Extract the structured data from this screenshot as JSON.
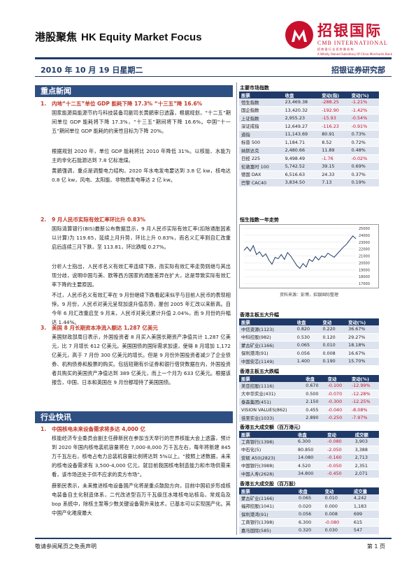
{
  "header": {
    "title_cn": "港股聚焦",
    "title_en": "HK Equity Market Focus",
    "logo_cn": "招银国际",
    "logo_en": "CMB INTERNATIONAL",
    "logo_sub": "招 商 银 行 全 资 附 属 机 构",
    "logo_sub_en": "A Wholly Owned Subsidiary Of China Merchants Bank",
    "date": "2010 年 10 月 19 日星期二",
    "dept": "招银证券研究部",
    "brand_color": "#c8102e",
    "accent_color": "#1f3a68"
  },
  "news": {
    "section_title": "重点新闻",
    "items": [
      {
        "num": "1.",
        "headline": "内地“十二五”单位 GDP 能耗下降 17.3% “十三五”降 16.6%",
        "paragraphs": [
          "国家能源局能源节约与科技装备司副司长黄鹂审日透露，根据规划，“十二五”期间单位 GDP 能耗将下降 17.3%，“十三五”期间将下降 16.6%。中国“十一五”期间单位 GDP 能耗的约束性目标为下降 20%。",
          "根据规划 2020 年，单位 GDP 能耗将比 2010 年降低 31%。以核能、水能为主的非化石能源达到 7.8 亿标准煤。",
          "黄鹂强调，重点是调整电力结构，2020 年水电发电要达到 3.8 亿 kw，核电达 0.8 亿 kw，风电、太阳能、非物质发电等达 2 亿 kw。"
        ]
      },
      {
        "num": "2.",
        "headline": "9 月人民币实际有效汇率环比升 0.83%",
        "paragraphs": [
          "国际清算银行(BIS)最新公布数据显示，9 月人民币实际有效汇率(扣除通胀因素以计算)为 119.65，延续上月升势，环比上升 0.83%，而名义汇率则自汇改重启后连续三月下跌，至 113.81，环比跌幅 0.27%。",
          "分析人士指出，人民币名义有效汇率连续下跌，而实际有效汇率走势则继与其出现分歧，说明中国与美、欧等西方国家的通胀差异在扩大，这是导致实际有效汇率下降的主要原因。",
          "不过，人民币名义有效汇率在 9 月份继续下跌看起来似乎与目前人民币的表现相悖。9 月份，人民币对美元呈现加速升值态势，屡创 2005 年汇改以来新高。自今年 6 月汇改重启至 9 月末，人民币对美元累计升值 2.04%，而 9 月份的升幅达 1.44%。"
        ]
      },
      {
        "num": "3.",
        "headline": "美国 8 月长期资本净流入额达 1,287 亿美元",
        "paragraphs": [
          "美国财政部周日表示，外国投资者 8 月买入美国长期资产净值共计 1,287 亿美元，比 7 月增长 612 亿美元。美国国债的国际需求加速，使得 8 月增加 1,172 亿美元，高于 7 月份 300 亿美元的增长。但是 9 月份外国投资者减少了企业债券、机构债券和股票的购买。包括短期有价证券和银行借贷数据在内，外国投资者共购买的美国资产净值达到 389 亿美元，而上一个月为 633 亿美元。根据该报告，中国、日本和英国在 9 月份都增持了美国国债。"
        ]
      }
    ]
  },
  "industry": {
    "section_title": "行业快讯",
    "items": [
      {
        "num": "1.",
        "headline": "中国核电未来设备需求将多达 4,000 亿",
        "paragraphs": [
          "核能经济专业委员会副主任薛新民在参加当天举行的世界核能大会上透露，预计到 2020 年国内核电装机容量将在 7,000-8,000 万千瓦左右，每年将新建 845 万千瓦左右，核电占电力总装机容量比例将达到 5%以上。“按照上述数据，未来的核电设备需求有 3,500-4,000 亿元，就目前我国核电制造能力和市场供需来看，该市场还处于供不应求的卖方市场”。",
          "薛新民表示，未来推进核电设备国产化将是重点鼓励方向，目前中国初步形成核电装备自主化制造体系，二代改进型百万千瓦级压水堆核电站核岛，常规岛及 bop 系统中，除核主泵等少数关键设备需外来技术，已基本可以实现国产化。其中国产化难度最大"
        ]
      }
    ]
  },
  "indices": {
    "title": "主要市场指数",
    "headers": [
      "股票",
      "收盘",
      "变动(指)",
      "变动(%)"
    ],
    "rows": [
      [
        "恒生指数",
        "23,469.38",
        "-288.25",
        "-1.21%"
      ],
      [
        "国企指数",
        "13,420.32",
        "-192.90",
        "-1.42%"
      ],
      [
        "上证指数",
        "2,955.23",
        "-15.93",
        "-0.54%"
      ],
      [
        "深证成指",
        "12,649.27",
        "-116.23",
        "-0.91%"
      ],
      [
        "道指",
        "11,143.69",
        "80.91",
        "0.73%"
      ],
      [
        "标普 500",
        "1,184.71",
        "8.52",
        "0.72%"
      ],
      [
        "纳斯达克",
        "2,480.66",
        "11.89",
        "0.48%"
      ],
      [
        "日经 225",
        "9,498.49",
        "-1.76",
        "-0.02%"
      ],
      [
        "伦敦富时 100",
        "5,742.52",
        "39.15",
        "0.69%"
      ],
      [
        "德国 DAX",
        "6,516.63",
        "24.33",
        "0.37%"
      ],
      [
        "巴黎 CAC40",
        "3,834.50",
        "7.13",
        "0.19%"
      ]
    ]
  },
  "hsi_chart": {
    "title": "恒生指数一年走势",
    "source": "资料来源：彭博，招银国际整理"
  },
  "chart_data": {
    "type": "line",
    "title": "恒生指数一年走势",
    "ylim": [
      17000,
      25000
    ],
    "yticks": [
      "25000",
      "24000",
      "23000",
      "22000",
      "21000",
      "20000",
      "19000",
      "18000",
      "17000"
    ],
    "series": [
      {
        "values": [
          21800,
          22300,
          21700,
          22500,
          21200,
          21600,
          20900,
          21300,
          20400,
          19800,
          20800,
          20600,
          21200,
          20500,
          21500,
          21000,
          20300,
          19600,
          19200,
          19900,
          19400,
          20500,
          20200,
          20900,
          20400,
          21000,
          20800,
          21400,
          21100,
          20800,
          21300,
          21800,
          22300,
          22700,
          23300,
          23900,
          23500
        ]
      }
    ]
  },
  "gainers": {
    "title": "香港主板五大升幅",
    "headers": [
      "股票",
      "收盘",
      "变动",
      "变动(%)"
    ],
    "rows": [
      [
        "中信资源(1123)",
        "0.820",
        "0.220",
        "36.67%"
      ],
      [
        "中科控股(982)",
        "0.530",
        "0.120",
        "29.27%"
      ],
      [
        "蒙古矿业(1166)",
        "0.065",
        "0.010",
        "18.18%"
      ],
      [
        "保利港湾(91)",
        "0.056",
        "0.008",
        "16.67%"
      ],
      [
        "中国安芯(1149)",
        "1.400",
        "0.190",
        "15.70%"
      ]
    ]
  },
  "losers": {
    "title": "香港主板五大跌幅",
    "headers": [
      "股票",
      "收盘",
      "变动",
      "变动(%)"
    ],
    "rows": [
      [
        "美亚控股(1116)",
        "0.670",
        "-0.100",
        "-12.99%"
      ],
      [
        "大中华实业(431)",
        "0.500",
        "-0.070",
        "-12.28%"
      ],
      [
        "泰森集团(451)",
        "2.150",
        "-0.300",
        "-12.25%"
      ],
      [
        "VISION VALUES(862)",
        "0.455",
        "-0.040",
        "-8.08%"
      ],
      [
        "佳至实业(1033)",
        "2.890",
        "-0.250",
        "-7.97%"
      ]
    ]
  },
  "turnover": {
    "title": "香港五大成交额（百万港元）",
    "headers": [
      "股票",
      "收盘",
      "变动",
      "成交额"
    ],
    "rows": [
      [
        "工商银行(1398)",
        "6.300",
        "-0.080",
        "3,903"
      ],
      [
        "中石化(5)",
        "80.850",
        "-2.050",
        "3,388"
      ],
      [
        "安硕 A50(2823)",
        "14.080",
        "-0.160",
        "2,713"
      ],
      [
        "中国银行(3988)",
        "4.520",
        "-0.050",
        "2,351"
      ],
      [
        "中国人寿(2628)",
        "34.800",
        "-0.450",
        "2,071"
      ]
    ]
  },
  "volume": {
    "title": "香港五大成交股（百万股）",
    "headers": [
      "股票",
      "收盘",
      "变动",
      "成交量"
    ],
    "rows": [
      [
        "蒙古矿业(1166)",
        "0.065",
        "0.010",
        "4,242"
      ],
      [
        "福邦控股(1041)",
        "0.020",
        "0.000",
        "1,183"
      ],
      [
        "保利港湾(91)",
        "0.056",
        "0.008",
        "699"
      ],
      [
        "工商银行(1398)",
        "6.300",
        "-0.080",
        "615"
      ],
      [
        "嘉马国际(585)",
        "0.320",
        "0.030",
        "547"
      ]
    ]
  },
  "footer": {
    "disclaimer": "敬请参阅尾页之免责声明",
    "page": "第 1 页"
  }
}
